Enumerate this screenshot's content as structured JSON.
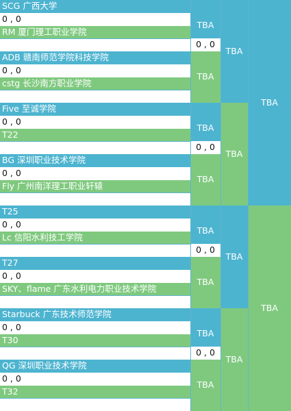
{
  "placeholder": "TBA",
  "score_text": "0 , 0",
  "round1": [
    {
      "top": "SCG 广西大学",
      "bottom": "RM 厦门理工职业学院",
      "score": "0 , 0",
      "result": "TBA"
    },
    {
      "top": "ADB  赣南师范学院科技学院",
      "bottom": "cstg 长沙南方职业学院",
      "score": "0 , 0",
      "result": "TBA"
    },
    {
      "top": "Five 至诚学院",
      "bottom": "T22",
      "score": "0 , 0",
      "result": "TBA"
    },
    {
      "top": "BG 深圳职业技术学院",
      "bottom": "Fly 广州南洋理工职业轩辕",
      "score": "0 , 0",
      "result": "TBA"
    },
    {
      "top": "T25",
      "bottom": "Lc 信阳水利技工学院",
      "score": "0 , 0",
      "result": "TBA"
    },
    {
      "top": "T27",
      "bottom": "SKY、flame 广东水利电力职业技术学院",
      "score": "0 , 0",
      "result": "TBA"
    },
    {
      "top": "Starbuck 广东技术师范学院",
      "bottom": "T30",
      "score": "0 , 0",
      "result": "TBA"
    },
    {
      "top": "QG  深圳职业技术学院",
      "bottom": "T32",
      "score": "0 , 0",
      "result": "TBA"
    }
  ],
  "round2": [
    {
      "score": "0 , 0",
      "result": "TBA"
    },
    {
      "score": "0 , 0",
      "result": "TBA"
    },
    {
      "score": "0 , 0",
      "result": "TBA"
    },
    {
      "score": "0 , 0",
      "result": "TBA"
    }
  ],
  "round3": [
    {
      "result": "TBA"
    },
    {
      "result": "TBA"
    }
  ],
  "colors": {
    "blue": "#4db4d0",
    "green": "#7fc97f"
  }
}
